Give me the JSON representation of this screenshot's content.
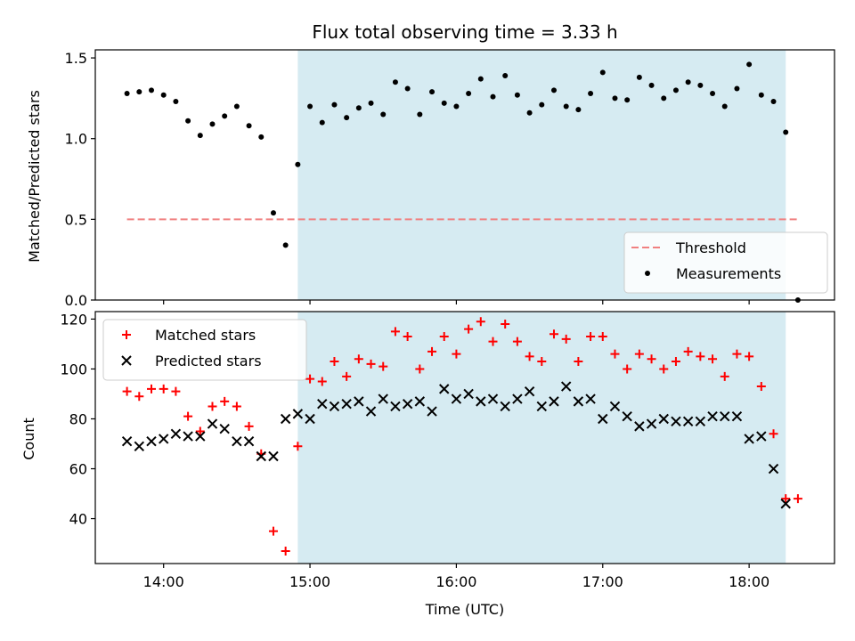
{
  "chart_data": [
    {
      "type": "scatter",
      "title": "Flux total observing time = 3.33 h",
      "xlabel": "",
      "ylabel": "Matched/Predicted stars",
      "x_unit": "time (UTC)",
      "xlim": [
        "13:32",
        "18:35"
      ],
      "ylim": [
        0,
        1.55
      ],
      "yticks": [
        "0.0",
        "0.5",
        "1.0",
        "1.5"
      ],
      "xticks": [
        "14:00",
        "15:00",
        "16:00",
        "17:00",
        "18:00"
      ],
      "shaded_span": {
        "from": "14:55",
        "to": "18:15",
        "color": "#add8e6"
      },
      "threshold": {
        "name": "Threshold",
        "value": 0.5,
        "from": "13:45",
        "to": "18:20",
        "color": "#f08080",
        "style": "dashed"
      },
      "legend": {
        "position": "lower right",
        "entries": [
          "Threshold",
          "Measurements"
        ]
      },
      "series": [
        {
          "name": "Measurements",
          "color": "#000000",
          "marker": "dot",
          "points": [
            [
              "13:45",
              1.28
            ],
            [
              "13:50",
              1.29
            ],
            [
              "13:55",
              1.3
            ],
            [
              "14:00",
              1.27
            ],
            [
              "14:05",
              1.23
            ],
            [
              "14:10",
              1.11
            ],
            [
              "14:15",
              1.02
            ],
            [
              "14:20",
              1.09
            ],
            [
              "14:25",
              1.14
            ],
            [
              "14:30",
              1.2
            ],
            [
              "14:35",
              1.08
            ],
            [
              "14:40",
              1.01
            ],
            [
              "14:45",
              0.54
            ],
            [
              "14:50",
              0.34
            ],
            [
              "14:55",
              0.84
            ],
            [
              "15:00",
              1.2
            ],
            [
              "15:05",
              1.1
            ],
            [
              "15:10",
              1.21
            ],
            [
              "15:15",
              1.13
            ],
            [
              "15:20",
              1.19
            ],
            [
              "15:25",
              1.22
            ],
            [
              "15:30",
              1.15
            ],
            [
              "15:35",
              1.35
            ],
            [
              "15:40",
              1.31
            ],
            [
              "15:45",
              1.15
            ],
            [
              "15:50",
              1.29
            ],
            [
              "15:55",
              1.22
            ],
            [
              "16:00",
              1.2
            ],
            [
              "16:05",
              1.28
            ],
            [
              "16:10",
              1.37
            ],
            [
              "16:15",
              1.26
            ],
            [
              "16:20",
              1.39
            ],
            [
              "16:25",
              1.27
            ],
            [
              "16:30",
              1.16
            ],
            [
              "16:35",
              1.21
            ],
            [
              "16:40",
              1.3
            ],
            [
              "16:45",
              1.2
            ],
            [
              "16:50",
              1.18
            ],
            [
              "16:55",
              1.28
            ],
            [
              "17:00",
              1.41
            ],
            [
              "17:05",
              1.25
            ],
            [
              "17:10",
              1.24
            ],
            [
              "17:15",
              1.38
            ],
            [
              "17:20",
              1.33
            ],
            [
              "17:25",
              1.25
            ],
            [
              "17:30",
              1.3
            ],
            [
              "17:35",
              1.35
            ],
            [
              "17:40",
              1.33
            ],
            [
              "17:45",
              1.28
            ],
            [
              "17:50",
              1.2
            ],
            [
              "17:55",
              1.31
            ],
            [
              "18:00",
              1.46
            ],
            [
              "18:05",
              1.27
            ],
            [
              "18:10",
              1.23
            ],
            [
              "18:15",
              1.04
            ],
            [
              "18:20",
              0.0
            ]
          ]
        }
      ]
    },
    {
      "type": "scatter",
      "title": "",
      "xlabel": "Time (UTC)",
      "ylabel": "Count",
      "xlim": [
        "13:32",
        "18:35"
      ],
      "ylim": [
        22,
        123
      ],
      "yticks": [
        "40",
        "60",
        "80",
        "100",
        "120"
      ],
      "xticks": [
        "14:00",
        "15:00",
        "16:00",
        "17:00",
        "18:00"
      ],
      "shaded_span": {
        "from": "14:55",
        "to": "18:15",
        "color": "#add8e6"
      },
      "legend": {
        "position": "upper left",
        "entries": [
          "Matched stars",
          "Predicted stars"
        ]
      },
      "series": [
        {
          "name": "Matched stars",
          "color": "#ff0000",
          "marker": "plus",
          "points": [
            [
              "13:45",
              91
            ],
            [
              "13:50",
              89
            ],
            [
              "13:55",
              92
            ],
            [
              "14:00",
              92
            ],
            [
              "14:05",
              91
            ],
            [
              "14:10",
              81
            ],
            [
              "14:15",
              75
            ],
            [
              "14:20",
              85
            ],
            [
              "14:25",
              87
            ],
            [
              "14:30",
              85
            ],
            [
              "14:35",
              77
            ],
            [
              "14:40",
              66
            ],
            [
              "14:45",
              35
            ],
            [
              "14:50",
              27
            ],
            [
              "14:55",
              69
            ],
            [
              "15:00",
              96
            ],
            [
              "15:05",
              95
            ],
            [
              "15:10",
              103
            ],
            [
              "15:15",
              97
            ],
            [
              "15:20",
              104
            ],
            [
              "15:25",
              102
            ],
            [
              "15:30",
              101
            ],
            [
              "15:35",
              115
            ],
            [
              "15:40",
              113
            ],
            [
              "15:45",
              100
            ],
            [
              "15:50",
              107
            ],
            [
              "15:55",
              113
            ],
            [
              "16:00",
              106
            ],
            [
              "16:05",
              116
            ],
            [
              "16:10",
              119
            ],
            [
              "16:15",
              111
            ],
            [
              "16:20",
              118
            ],
            [
              "16:25",
              111
            ],
            [
              "16:30",
              105
            ],
            [
              "16:35",
              103
            ],
            [
              "16:40",
              114
            ],
            [
              "16:45",
              112
            ],
            [
              "16:50",
              103
            ],
            [
              "16:55",
              113
            ],
            [
              "17:00",
              113
            ],
            [
              "17:05",
              106
            ],
            [
              "17:10",
              100
            ],
            [
              "17:15",
              106
            ],
            [
              "17:20",
              104
            ],
            [
              "17:25",
              100
            ],
            [
              "17:30",
              103
            ],
            [
              "17:35",
              107
            ],
            [
              "17:40",
              105
            ],
            [
              "17:45",
              104
            ],
            [
              "17:50",
              97
            ],
            [
              "17:55",
              106
            ],
            [
              "18:00",
              105
            ],
            [
              "18:05",
              93
            ],
            [
              "18:10",
              74
            ],
            [
              "18:15",
              48
            ],
            [
              "18:20",
              48
            ]
          ]
        },
        {
          "name": "Predicted stars",
          "color": "#000000",
          "marker": "x",
          "points": [
            [
              "13:45",
              71
            ],
            [
              "13:50",
              69
            ],
            [
              "13:55",
              71
            ],
            [
              "14:00",
              72
            ],
            [
              "14:05",
              74
            ],
            [
              "14:10",
              73
            ],
            [
              "14:15",
              73
            ],
            [
              "14:20",
              78
            ],
            [
              "14:25",
              76
            ],
            [
              "14:30",
              71
            ],
            [
              "14:35",
              71
            ],
            [
              "14:40",
              65
            ],
            [
              "14:45",
              65
            ],
            [
              "14:50",
              80
            ],
            [
              "14:55",
              82
            ],
            [
              "15:00",
              80
            ],
            [
              "15:05",
              86
            ],
            [
              "15:10",
              85
            ],
            [
              "15:15",
              86
            ],
            [
              "15:20",
              87
            ],
            [
              "15:25",
              83
            ],
            [
              "15:30",
              88
            ],
            [
              "15:35",
              85
            ],
            [
              "15:40",
              86
            ],
            [
              "15:45",
              87
            ],
            [
              "15:50",
              83
            ],
            [
              "15:55",
              92
            ],
            [
              "16:00",
              88
            ],
            [
              "16:05",
              90
            ],
            [
              "16:10",
              87
            ],
            [
              "16:15",
              88
            ],
            [
              "16:20",
              85
            ],
            [
              "16:25",
              88
            ],
            [
              "16:30",
              91
            ],
            [
              "16:35",
              85
            ],
            [
              "16:40",
              87
            ],
            [
              "16:45",
              93
            ],
            [
              "16:50",
              87
            ],
            [
              "16:55",
              88
            ],
            [
              "17:00",
              80
            ],
            [
              "17:05",
              85
            ],
            [
              "17:10",
              81
            ],
            [
              "17:15",
              77
            ],
            [
              "17:20",
              78
            ],
            [
              "17:25",
              80
            ],
            [
              "17:30",
              79
            ],
            [
              "17:35",
              79
            ],
            [
              "17:40",
              79
            ],
            [
              "17:45",
              81
            ],
            [
              "17:50",
              81
            ],
            [
              "17:55",
              81
            ],
            [
              "18:00",
              72
            ],
            [
              "18:05",
              73
            ],
            [
              "18:10",
              60
            ],
            [
              "18:15",
              46
            ]
          ]
        }
      ]
    }
  ]
}
